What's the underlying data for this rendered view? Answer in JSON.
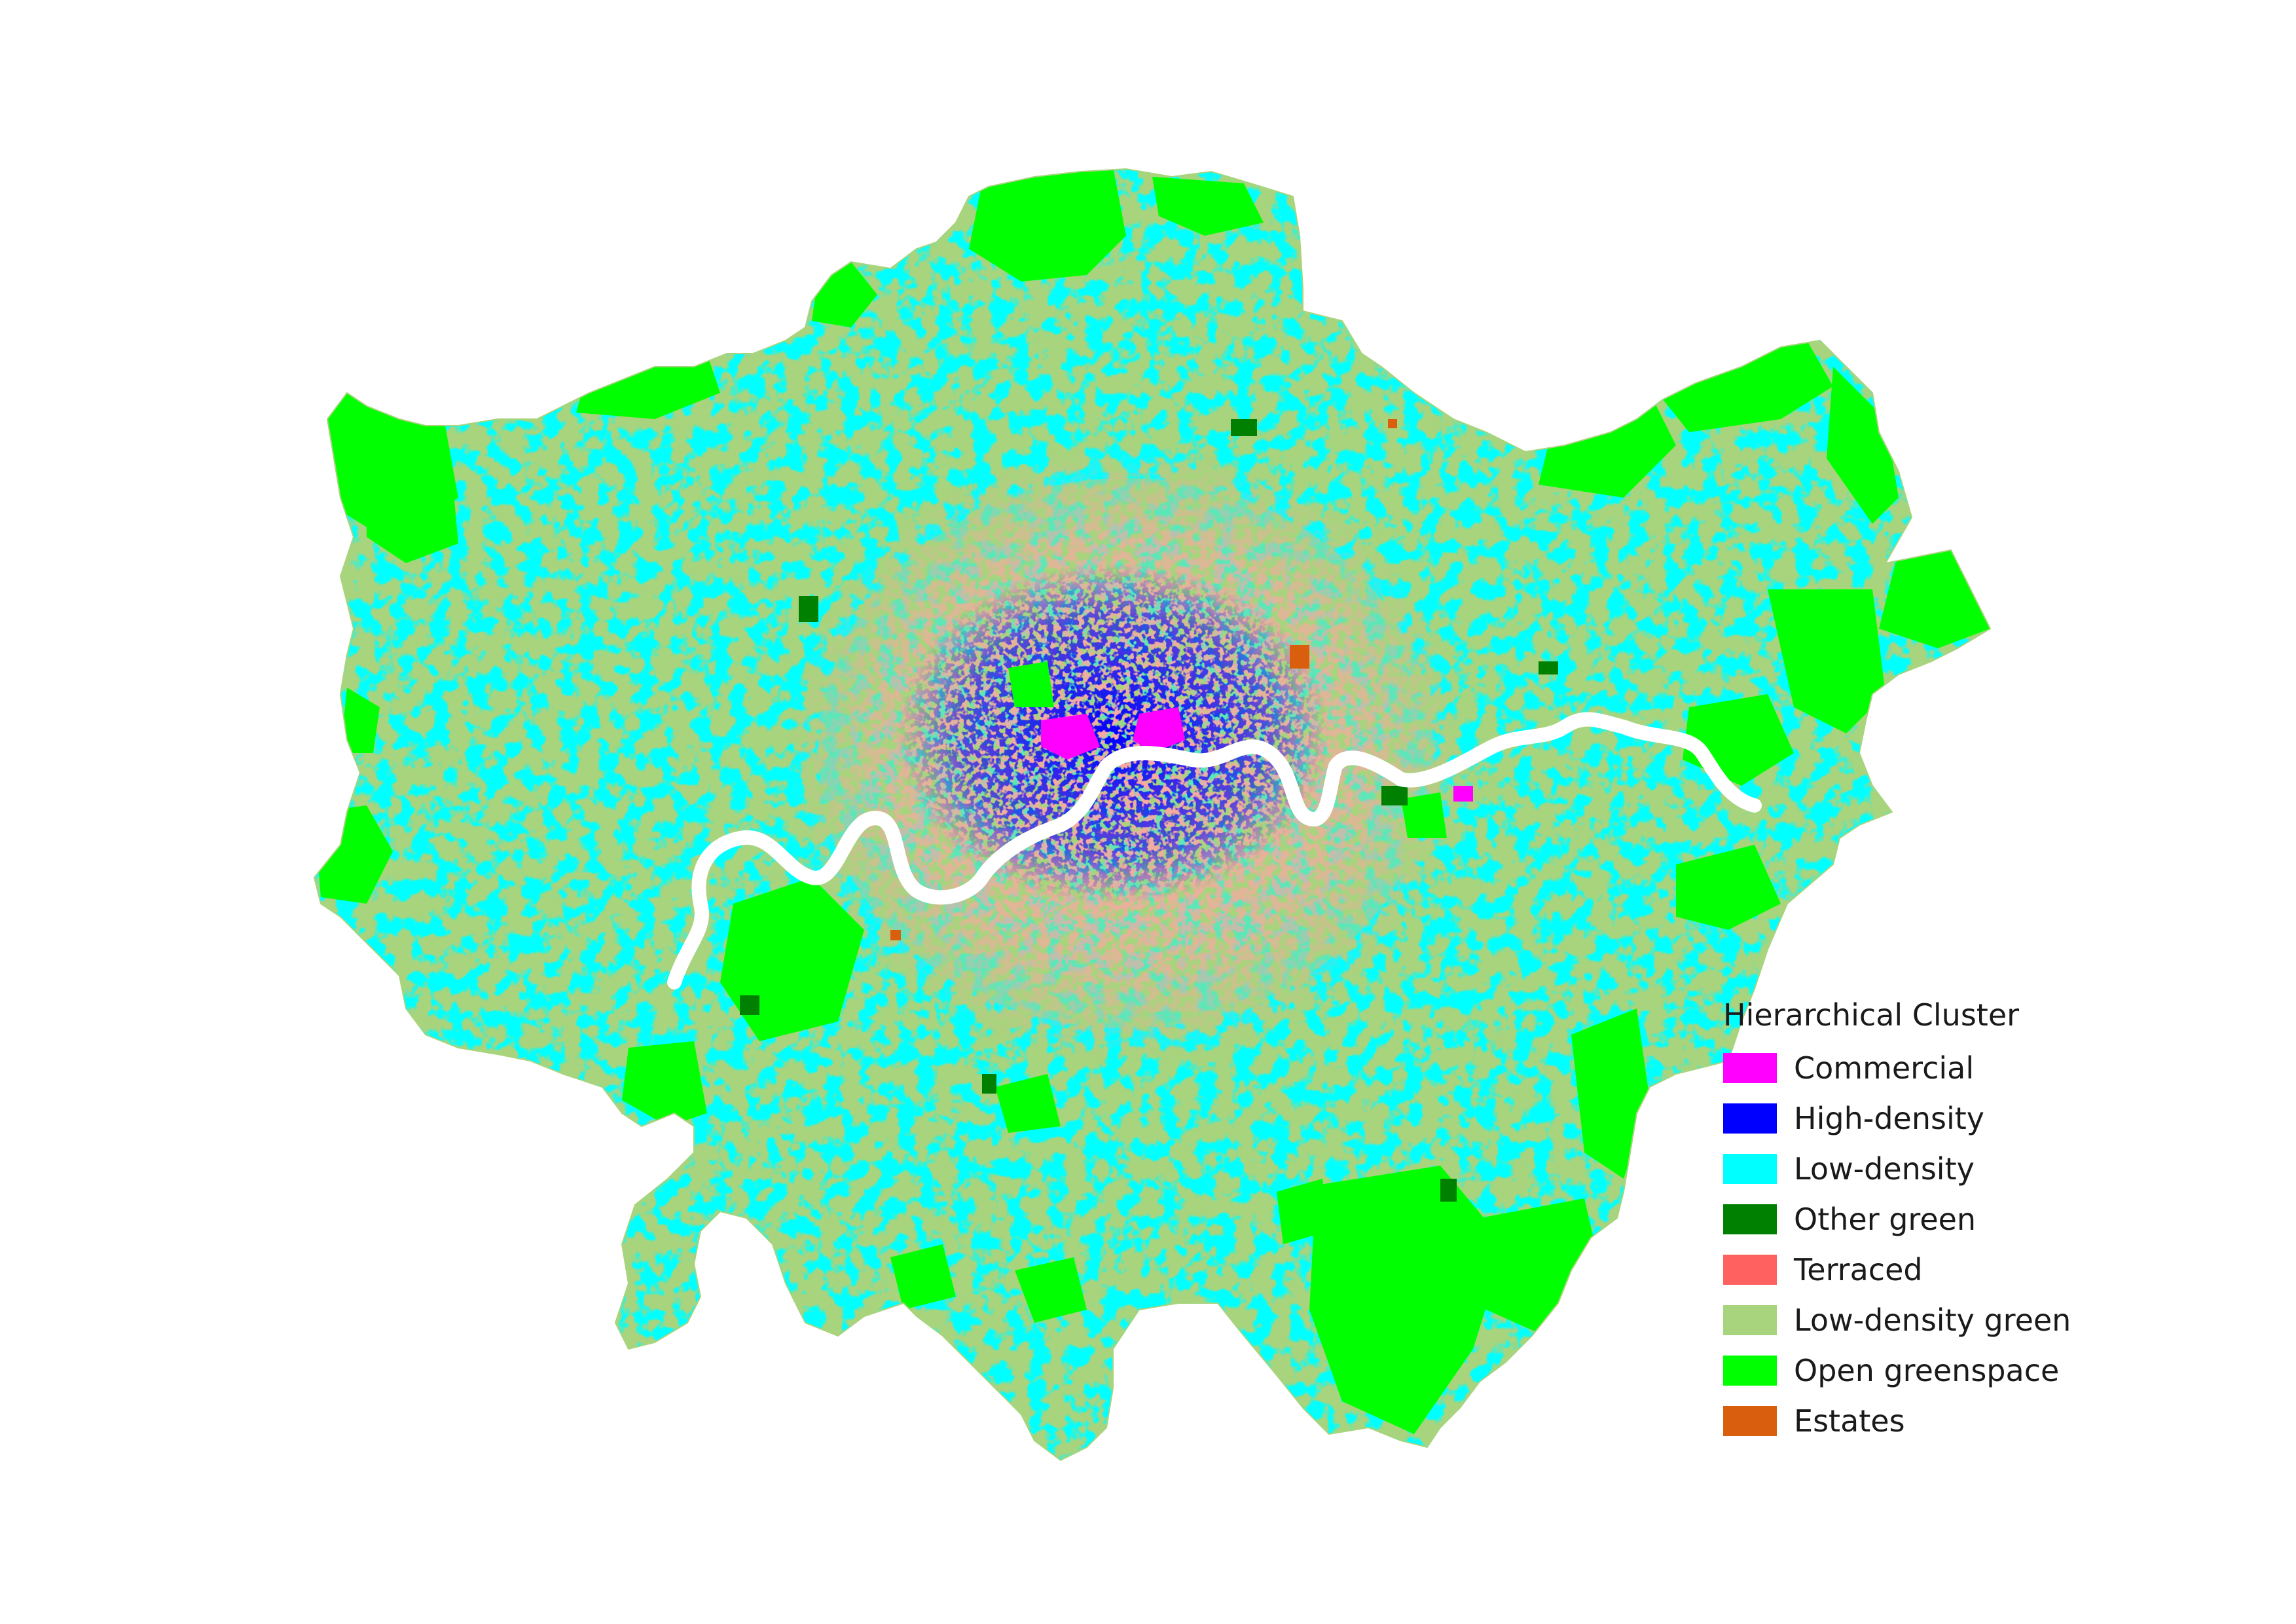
{
  "legend": {
    "title": "Hierarchical Cluster",
    "items": [
      {
        "key": "commercial",
        "label": "Commercial",
        "color": "#ff00ff"
      },
      {
        "key": "high-density",
        "label": "High-density",
        "color": "#0000ff"
      },
      {
        "key": "low-density",
        "label": "Low-density",
        "color": "#00ffff"
      },
      {
        "key": "other-green",
        "label": "Other green",
        "color": "#008000"
      },
      {
        "key": "terraced",
        "label": "Terraced",
        "color": "#ff6060"
      },
      {
        "key": "low-density-green",
        "label": "Low-density green",
        "color": "#a8d47e"
      },
      {
        "key": "open-greenspace",
        "label": "Open greenspace",
        "color": "#00ff00"
      },
      {
        "key": "estates",
        "label": "Estates",
        "color": "#d95f0e"
      }
    ]
  },
  "map": {
    "background": "#ffffff",
    "river_color": "#ffffff"
  }
}
